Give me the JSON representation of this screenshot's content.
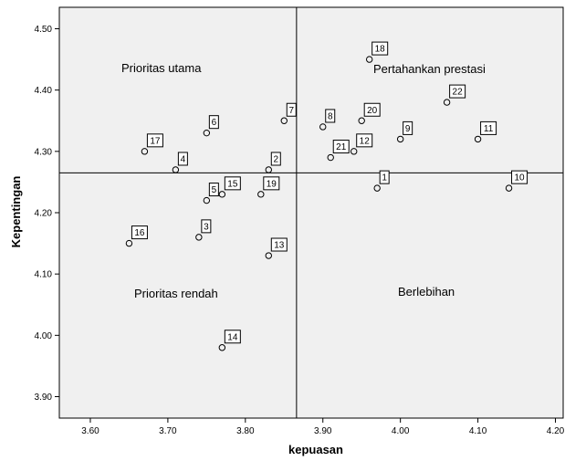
{
  "chart_data": {
    "type": "scatter",
    "xlabel": "kepuasan",
    "ylabel": "Kepentingan",
    "xlim": [
      3.56,
      4.21
    ],
    "ylim": [
      3.865,
      4.535
    ],
    "xticks": [
      "3.60",
      "3.70",
      "3.80",
      "3.90",
      "4.00",
      "4.10",
      "4.20"
    ],
    "yticks": [
      "3.90",
      "4.00",
      "4.10",
      "4.20",
      "4.30",
      "4.40",
      "4.50"
    ],
    "grid": false,
    "reference_lines": {
      "x": 3.866,
      "y": 4.265
    },
    "quadrants": {
      "top_left": "Prioritas utama",
      "top_right": "Pertahankan prestasi",
      "bottom_left": "Prioritas rendah",
      "bottom_right": "Berlebihan"
    },
    "points": [
      {
        "label": "1",
        "x": 3.97,
        "y": 4.24
      },
      {
        "label": "2",
        "x": 3.83,
        "y": 4.27
      },
      {
        "label": "3",
        "x": 3.74,
        "y": 4.16
      },
      {
        "label": "4",
        "x": 3.71,
        "y": 4.27
      },
      {
        "label": "5",
        "x": 3.75,
        "y": 4.22
      },
      {
        "label": "6",
        "x": 3.75,
        "y": 4.33
      },
      {
        "label": "7",
        "x": 3.85,
        "y": 4.35
      },
      {
        "label": "8",
        "x": 3.9,
        "y": 4.34
      },
      {
        "label": "9",
        "x": 4.0,
        "y": 4.32
      },
      {
        "label": "10",
        "x": 4.14,
        "y": 4.24
      },
      {
        "label": "11",
        "x": 4.1,
        "y": 4.32
      },
      {
        "label": "12",
        "x": 3.94,
        "y": 4.3
      },
      {
        "label": "13",
        "x": 3.83,
        "y": 4.13
      },
      {
        "label": "14",
        "x": 3.77,
        "y": 3.98
      },
      {
        "label": "15",
        "x": 3.77,
        "y": 4.23
      },
      {
        "label": "16",
        "x": 3.65,
        "y": 4.15
      },
      {
        "label": "17",
        "x": 3.67,
        "y": 4.3
      },
      {
        "label": "18",
        "x": 3.96,
        "y": 4.45
      },
      {
        "label": "19",
        "x": 3.82,
        "y": 4.23
      },
      {
        "label": "20",
        "x": 3.95,
        "y": 4.35
      },
      {
        "label": "21",
        "x": 3.91,
        "y": 4.29
      },
      {
        "label": "22",
        "x": 4.06,
        "y": 4.38
      }
    ]
  }
}
